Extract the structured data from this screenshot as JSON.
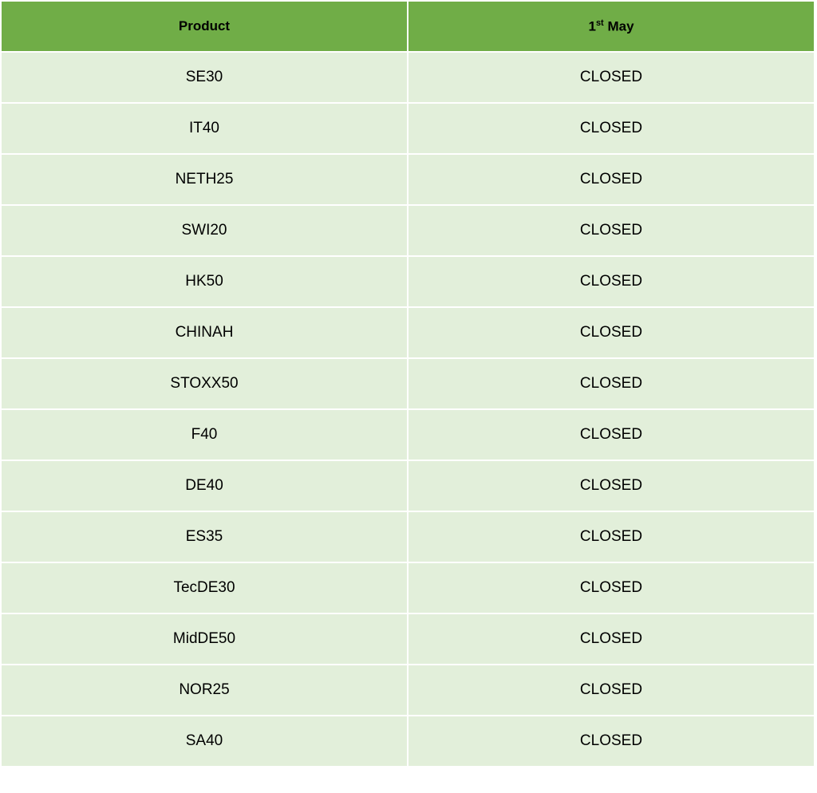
{
  "colors": {
    "header_bg": "#70AD47",
    "row_bg": "#E2EFDA",
    "border": "#FFFFFF"
  },
  "header": {
    "product": "Product",
    "date_num": "1",
    "date_sup": "st",
    "date_month": "May"
  },
  "rows": [
    {
      "product": "SE30",
      "status": "CLOSED"
    },
    {
      "product": "IT40",
      "status": "CLOSED"
    },
    {
      "product": "NETH25",
      "status": "CLOSED"
    },
    {
      "product": "SWI20",
      "status": "CLOSED"
    },
    {
      "product": "HK50",
      "status": "CLOSED"
    },
    {
      "product": "CHINAH",
      "status": "CLOSED"
    },
    {
      "product": "STOXX50",
      "status": "CLOSED"
    },
    {
      "product": "F40",
      "status": "CLOSED"
    },
    {
      "product": "DE40",
      "status": "CLOSED"
    },
    {
      "product": "ES35",
      "status": "CLOSED"
    },
    {
      "product": "TecDE30",
      "status": "CLOSED"
    },
    {
      "product": "MidDE50",
      "status": "CLOSED"
    },
    {
      "product": "NOR25",
      "status": "CLOSED"
    },
    {
      "product": "SA40",
      "status": "CLOSED"
    }
  ]
}
